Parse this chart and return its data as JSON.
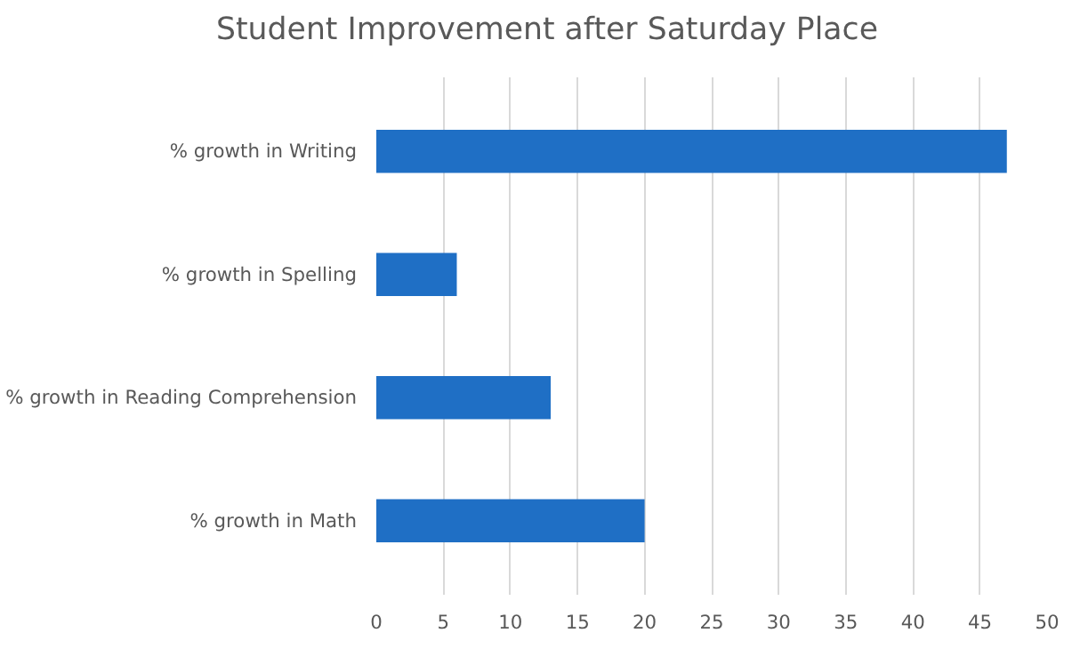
{
  "chart_data": {
    "type": "bar",
    "orientation": "horizontal",
    "title": "Student Improvement after Saturday Place",
    "categories": [
      "% growth in Writing",
      "% growth in Spelling",
      "% growth in Reading Comprehension",
      "% growth in Math"
    ],
    "values": [
      47,
      6,
      13,
      20
    ],
    "color": "#1f6fc5",
    "xlim": [
      0,
      50
    ],
    "xticks": [
      0,
      5,
      10,
      15,
      20,
      25,
      30,
      35,
      40,
      45,
      50
    ],
    "grid": "x"
  }
}
